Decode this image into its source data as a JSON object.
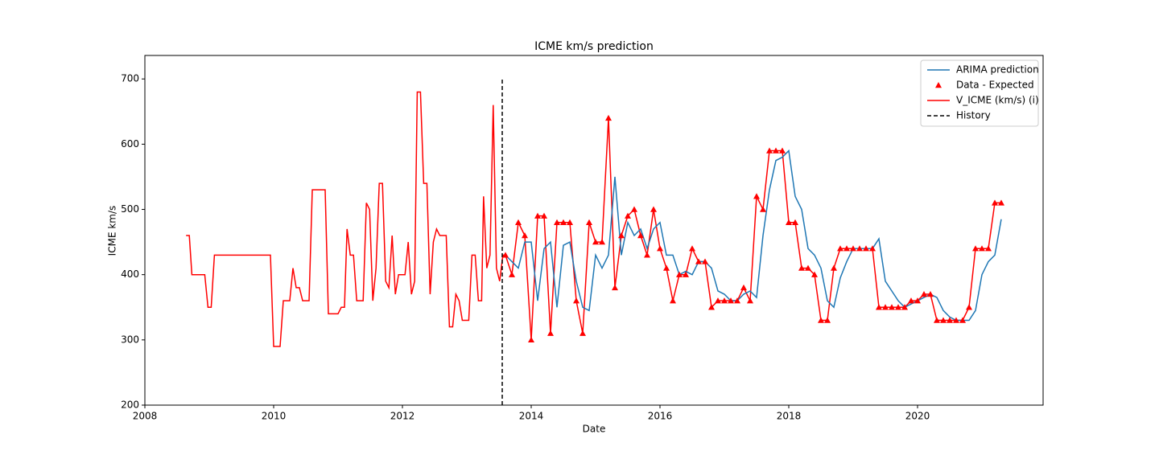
{
  "chart_data": {
    "type": "line",
    "title": "ICME km/s prediction",
    "x_label": "Date",
    "y_label": "ICME km/s",
    "xlim": [
      2008,
      2021.95
    ],
    "ylim": [
      200,
      736
    ],
    "xticks": [
      2008,
      2010,
      2012,
      2014,
      2016,
      2018,
      2020
    ],
    "yticks": [
      200,
      300,
      400,
      500,
      600,
      700
    ],
    "grid": false,
    "legend": "upper right",
    "series": [
      {
        "name": "ARIMA prediction",
        "color": "#1f77b4",
        "style": "line",
        "x": [
          2013.6,
          2013.7,
          2013.8,
          2013.9,
          2014.0,
          2014.1,
          2014.2,
          2014.3,
          2014.4,
          2014.5,
          2014.6,
          2014.7,
          2014.8,
          2014.9,
          2015.0,
          2015.1,
          2015.2,
          2015.3,
          2015.4,
          2015.5,
          2015.6,
          2015.7,
          2015.8,
          2015.9,
          2016.0,
          2016.1,
          2016.2,
          2016.3,
          2016.4,
          2016.5,
          2016.6,
          2016.7,
          2016.8,
          2016.9,
          2017.0,
          2017.1,
          2017.2,
          2017.3,
          2017.4,
          2017.5,
          2017.6,
          2017.7,
          2017.8,
          2017.9,
          2018.0,
          2018.1,
          2018.2,
          2018.3,
          2018.4,
          2018.5,
          2018.6,
          2018.7,
          2018.8,
          2018.9,
          2019.0,
          2019.1,
          2019.2,
          2019.3,
          2019.4,
          2019.5,
          2019.6,
          2019.7,
          2019.8,
          2019.9,
          2020.0,
          2020.1,
          2020.2,
          2020.3,
          2020.4,
          2020.5,
          2020.6,
          2020.7,
          2020.8,
          2020.9,
          2021.0,
          2021.1,
          2021.2,
          2021.3
        ],
        "values": [
          430,
          420,
          410,
          450,
          450,
          360,
          440,
          450,
          350,
          445,
          450,
          390,
          350,
          345,
          430,
          410,
          430,
          550,
          430,
          480,
          460,
          470,
          440,
          470,
          480,
          430,
          430,
          400,
          405,
          400,
          420,
          420,
          410,
          375,
          370,
          360,
          360,
          370,
          375,
          365,
          460,
          530,
          575,
          580,
          590,
          520,
          500,
          440,
          430,
          410,
          360,
          350,
          395,
          420,
          440,
          440,
          440,
          440,
          455,
          390,
          375,
          360,
          350,
          355,
          360,
          365,
          370,
          365,
          345,
          335,
          330,
          330,
          330,
          345,
          400,
          420,
          430,
          485
        ]
      },
      {
        "name": "Data - Expected",
        "color": "#ff0000",
        "style": "triangle",
        "x": [
          2013.6,
          2013.7,
          2013.8,
          2013.9,
          2014.0,
          2014.1,
          2014.2,
          2014.3,
          2014.4,
          2014.5,
          2014.6,
          2014.7,
          2014.8,
          2014.9,
          2015.0,
          2015.1,
          2015.2,
          2015.3,
          2015.4,
          2015.5,
          2015.6,
          2015.7,
          2015.8,
          2015.9,
          2016.0,
          2016.1,
          2016.2,
          2016.3,
          2016.4,
          2016.5,
          2016.6,
          2016.7,
          2016.8,
          2016.9,
          2017.0,
          2017.1,
          2017.2,
          2017.3,
          2017.4,
          2017.5,
          2017.6,
          2017.7,
          2017.8,
          2017.9,
          2018.0,
          2018.1,
          2018.2,
          2018.3,
          2018.4,
          2018.5,
          2018.6,
          2018.7,
          2018.8,
          2018.9,
          2019.0,
          2019.1,
          2019.2,
          2019.3,
          2019.4,
          2019.5,
          2019.6,
          2019.7,
          2019.8,
          2019.9,
          2020.0,
          2020.1,
          2020.2,
          2020.3,
          2020.4,
          2020.5,
          2020.6,
          2020.7,
          2020.8,
          2020.9,
          2021.0,
          2021.1,
          2021.2,
          2021.3
        ],
        "values": [
          430,
          400,
          480,
          460,
          300,
          490,
          490,
          310,
          480,
          480,
          480,
          360,
          310,
          480,
          450,
          450,
          640,
          380,
          460,
          490,
          500,
          460,
          430,
          500,
          440,
          410,
          360,
          400,
          400,
          440,
          420,
          420,
          350,
          360,
          360,
          360,
          360,
          380,
          360,
          520,
          500,
          590,
          590,
          590,
          480,
          480,
          410,
          410,
          400,
          330,
          330,
          410,
          440,
          440,
          440,
          440,
          440,
          440,
          350,
          350,
          350,
          350,
          350,
          360,
          360,
          370,
          370,
          330,
          330,
          330,
          330,
          330,
          350,
          440,
          440,
          440,
          510,
          510
        ]
      },
      {
        "name": "V_ICME (km/s) (i)",
        "color": "#ff0000",
        "style": "line",
        "x": [
          2008.64,
          2008.69,
          2008.73,
          2008.93,
          2008.98,
          2009.03,
          2009.08,
          2009.95,
          2010.0,
          2010.1,
          2010.15,
          2010.25,
          2010.3,
          2010.35,
          2010.4,
          2010.45,
          2010.55,
          2010.6,
          2010.8,
          2010.85,
          2011.0,
          2011.05,
          2011.1,
          2011.14,
          2011.19,
          2011.24,
          2011.29,
          2011.39,
          2011.44,
          2011.49,
          2011.54,
          2011.59,
          2011.64,
          2011.69,
          2011.74,
          2011.79,
          2011.84,
          2011.89,
          2011.94,
          2012.04,
          2012.09,
          2012.14,
          2012.19,
          2012.23,
          2012.28,
          2012.33,
          2012.38,
          2012.43,
          2012.48,
          2012.53,
          2012.58,
          2012.68,
          2012.73,
          2012.78,
          2012.83,
          2012.88,
          2012.93,
          2013.03,
          2013.08,
          2013.13,
          2013.18,
          2013.23,
          2013.26,
          2013.31,
          2013.36,
          2013.41,
          2013.46,
          2013.51,
          2013.56,
          2013.6,
          2013.7,
          2013.8,
          2013.9,
          2014.0,
          2014.1,
          2014.2,
          2014.3,
          2014.4,
          2014.5,
          2014.6,
          2014.7,
          2014.8,
          2014.9,
          2015.0,
          2015.1,
          2015.2,
          2015.3,
          2015.4,
          2015.5,
          2015.6,
          2015.7,
          2015.8,
          2015.9,
          2016.0,
          2016.1,
          2016.2,
          2016.3,
          2016.4,
          2016.5,
          2016.6,
          2016.7,
          2016.8,
          2016.9,
          2017.0,
          2017.1,
          2017.2,
          2017.3,
          2017.4,
          2017.5,
          2017.6,
          2017.7,
          2017.8,
          2017.9,
          2018.0,
          2018.1,
          2018.2,
          2018.3,
          2018.4,
          2018.5,
          2018.6,
          2018.7,
          2018.8,
          2018.9,
          2019.0,
          2019.1,
          2019.2,
          2019.3,
          2019.4,
          2019.5,
          2019.6,
          2019.7,
          2019.8,
          2019.9,
          2020.0,
          2020.1,
          2020.2,
          2020.3,
          2020.4,
          2020.5,
          2020.6,
          2020.7,
          2020.8,
          2020.9,
          2021.0,
          2021.1,
          2021.2,
          2021.3
        ],
        "values": [
          460,
          460,
          400,
          400,
          350,
          350,
          430,
          430,
          290,
          290,
          360,
          360,
          410,
          380,
          380,
          360,
          360,
          530,
          530,
          340,
          340,
          350,
          350,
          470,
          430,
          430,
          360,
          360,
          510,
          500,
          360,
          410,
          540,
          540,
          390,
          380,
          460,
          370,
          400,
          400,
          450,
          370,
          390,
          680,
          680,
          540,
          540,
          370,
          450,
          470,
          460,
          460,
          320,
          320,
          370,
          360,
          330,
          330,
          430,
          430,
          360,
          360,
          520,
          410,
          430,
          660,
          410,
          390,
          430,
          430,
          400,
          480,
          460,
          300,
          490,
          490,
          310,
          480,
          480,
          480,
          360,
          310,
          480,
          450,
          450,
          640,
          380,
          460,
          490,
          500,
          460,
          430,
          500,
          440,
          410,
          360,
          400,
          400,
          440,
          420,
          420,
          350,
          360,
          360,
          360,
          360,
          380,
          360,
          520,
          500,
          590,
          590,
          590,
          480,
          480,
          410,
          410,
          400,
          330,
          330,
          410,
          440,
          440,
          440,
          440,
          440,
          440,
          350,
          350,
          350,
          350,
          350,
          360,
          360,
          370,
          370,
          330,
          330,
          330,
          330,
          330,
          350,
          440,
          440,
          440,
          510,
          510
        ]
      },
      {
        "name": "History",
        "color": "#000000",
        "style": "dashed",
        "x": [
          2013.55,
          2013.55
        ],
        "values": [
          200,
          700
        ]
      }
    ]
  }
}
